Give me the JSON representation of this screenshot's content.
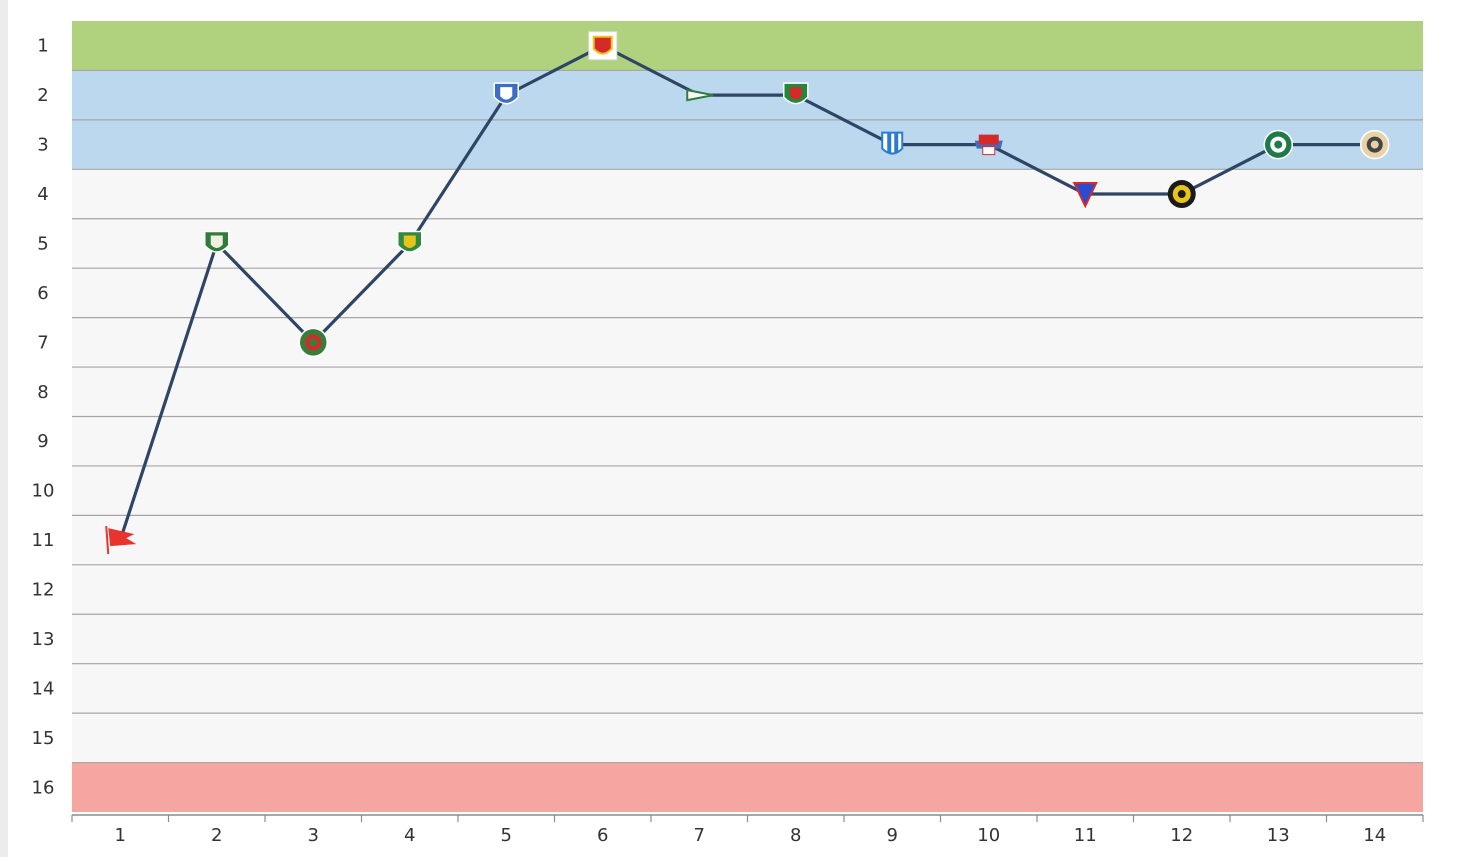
{
  "chart_data": {
    "type": "line",
    "title": "",
    "xlabel": "",
    "ylabel": "",
    "x": [
      1,
      2,
      3,
      4,
      5,
      6,
      7,
      8,
      9,
      10,
      11,
      12,
      13,
      14
    ],
    "x_tick_labels": [
      "1",
      "2",
      "3",
      "4",
      "5",
      "6",
      "7",
      "8",
      "9",
      "10",
      "11",
      "12",
      "13",
      "14"
    ],
    "y_tick_labels": [
      "1",
      "2",
      "3",
      "4",
      "5",
      "6",
      "7",
      "8",
      "9",
      "10",
      "11",
      "12",
      "13",
      "14",
      "15",
      "16"
    ],
    "y_inverted": true,
    "ylim": [
      1,
      16
    ],
    "grid": true,
    "series": [
      {
        "name": "",
        "values": [
          11,
          5,
          7,
          5,
          2,
          1,
          2,
          2,
          3,
          3,
          4,
          4,
          3,
          3
        ],
        "color": "#2f4565"
      }
    ],
    "point_markers": [
      {
        "icon": "red-flag-crest-icon",
        "primary": "#e8342f",
        "secondary": "#ffffff"
      },
      {
        "icon": "green-white-shield-crest-icon",
        "primary": "#2f7d3a",
        "secondary": "#f3efe0"
      },
      {
        "icon": "round-green-red-crest-icon",
        "primary": "#3a7d3a",
        "secondary": "#d42a2a"
      },
      {
        "icon": "green-yellow-shield-crest-icon",
        "primary": "#2d8a3e",
        "secondary": "#e8c41a"
      },
      {
        "icon": "blue-white-shield-crest-icon",
        "primary": "#3c6fc4",
        "secondary": "#ffffff"
      },
      {
        "icon": "red-yellow-square-crest-icon",
        "primary": "#d42a2a",
        "secondary": "#f2c21a"
      },
      {
        "icon": "green-pennant-crest-icon",
        "primary": "#2f7d3a",
        "secondary": "#ffffff"
      },
      {
        "icon": "green-white-red-shield-crest-icon",
        "primary": "#1f8a3a",
        "secondary": "#d42a2a"
      },
      {
        "icon": "blue-white-stripes-crest-icon",
        "primary": "#2a7bd4",
        "secondary": "#ffffff"
      },
      {
        "icon": "red-white-blue-ribbon-crest-icon",
        "primary": "#d42a2a",
        "secondary": "#3c6fc4"
      },
      {
        "icon": "red-blue-triangle-crest-icon",
        "primary": "#d42a2a",
        "secondary": "#2a4bd4"
      },
      {
        "icon": "black-gear-crest-icon",
        "primary": "#1a1a1a",
        "secondary": "#e8c41a"
      },
      {
        "icon": "green-round-crest-icon",
        "primary": "#1f7a4a",
        "secondary": "#ffffff"
      },
      {
        "icon": "beige-round-crest-icon",
        "primary": "#e8d3a8",
        "secondary": "#444444"
      }
    ],
    "bands": [
      {
        "from": 1,
        "to": 1,
        "color": "#b0d27e"
      },
      {
        "from": 2,
        "to": 3,
        "color": "#bcd8ee"
      },
      {
        "from": 4,
        "to": 15,
        "color": "#f7f7f7"
      },
      {
        "from": 16,
        "to": 16,
        "color": "#f5a6a0"
      }
    ],
    "colors": {
      "grid": "#a6a6a6",
      "axis": "#8c8c8c",
      "tick_text": "#333333"
    }
  }
}
